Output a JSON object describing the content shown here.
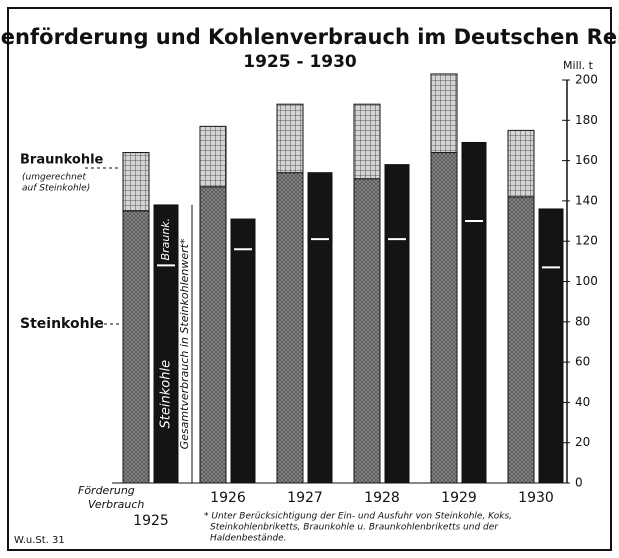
{
  "chart_data": {
    "type": "bar",
    "title": "Kohlenförderung und Kohlenverbrauch im Deutschen Reich",
    "subtitle": "1925 - 1930",
    "y_label": "Mill. t",
    "categories": [
      "1925",
      "1926",
      "1927",
      "1928",
      "1929",
      "1930"
    ],
    "bar_groups": [
      "Förderung",
      "Verbrauch"
    ],
    "series": [
      {
        "name": "Steinkohle",
        "color": "#8a8a8a",
        "values": [
          135,
          147,
          154,
          151,
          164,
          142
        ]
      },
      {
        "name": "Braunkohle",
        "color": "#d4d4d4",
        "values": [
          29,
          30,
          34,
          37,
          39,
          33
        ]
      },
      {
        "name": "Steinkohle",
        "color": "#141414",
        "values": [
          108,
          116,
          121,
          121,
          130,
          107
        ]
      },
      {
        "name": "Braunk.",
        "color": "#141414",
        "values": [
          30,
          15,
          33,
          37,
          39,
          29
        ]
      }
    ],
    "braunkohle_note": [
      "(umgerechnet",
      "auf Steinkohle)"
    ],
    "consumption_label": "Gesamtverbrauch in Steinkohlenwert*",
    "ylim": [
      0,
      200
    ],
    "yticks": [
      0,
      20,
      40,
      60,
      80,
      100,
      120,
      140,
      160,
      180,
      200
    ],
    "note": [
      "* Unter Berücksichtigung der Ein- und Ausfuhr von Steinkohle, Koks,",
      "Steinkohlenbriketts, Braunkohle u. Braunkohlenbriketts und der",
      "Haldenbestände."
    ],
    "source": "W.u.St. 31"
  }
}
